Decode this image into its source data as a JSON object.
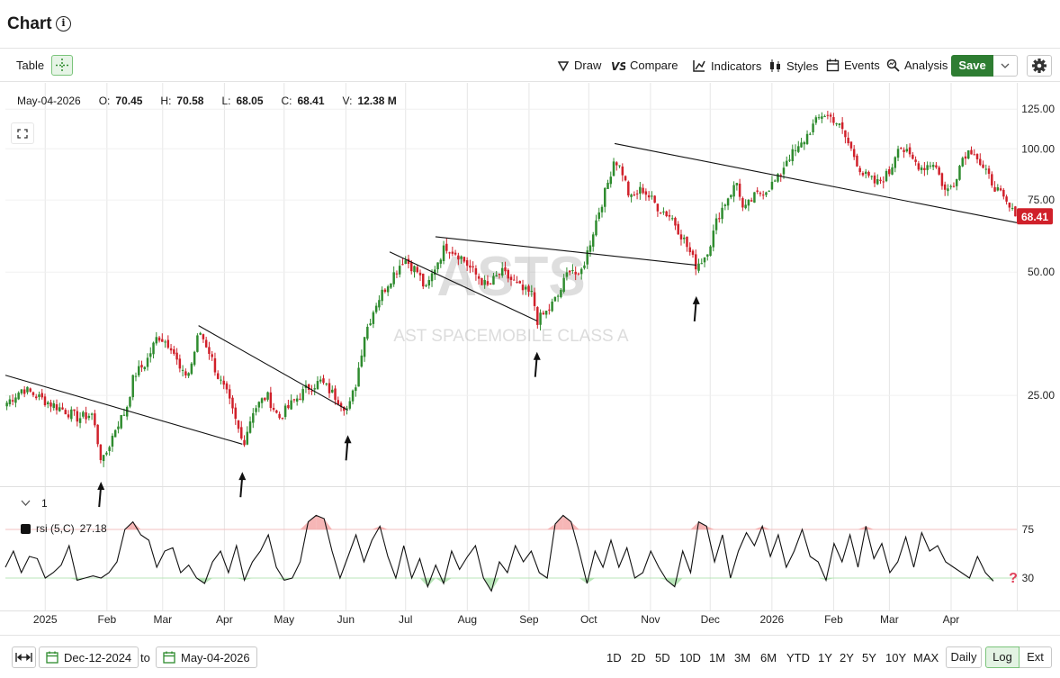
{
  "header": {
    "title": "Chart",
    "info_icon": "info-icon"
  },
  "toolbar": {
    "table_label": "Table",
    "draw_label": "Draw",
    "compare_label": "Compare",
    "indicators_label": "Indicators",
    "styles_label": "Styles",
    "events_label": "Events",
    "analysis_label": "Analysis",
    "save_label": "Save"
  },
  "ohlc": {
    "date": "May-04-2026",
    "o_label": "O:",
    "o": "70.45",
    "h_label": "H:",
    "h": "70.58",
    "l_label": "L:",
    "l": "68.05",
    "c_label": "C:",
    "c": "68.41",
    "v_label": "V:",
    "v": "12.38 M"
  },
  "panel": {
    "collapse_count": "1",
    "rsi_label": "rsi (5,C)",
    "rsi_value": "27.18"
  },
  "bottom": {
    "start_date": "Dec-12-2024",
    "to_label": "to",
    "end_date": "May-04-2026",
    "periods": [
      "1D",
      "2D",
      "5D",
      "10D",
      "1M",
      "3M",
      "6M",
      "YTD",
      "1Y",
      "2Y",
      "5Y",
      "10Y",
      "MAX"
    ],
    "daily_label": "Daily",
    "log_label": "Log",
    "ext_label": "Ext"
  },
  "colors": {
    "up": "#2e8b2e",
    "down": "#d0202a",
    "accent": "#2e7d32",
    "overbought": "#f4a4a4",
    "oversold": "#a8e0a8"
  },
  "chart_data": [
    {
      "type": "candlestick",
      "title": "",
      "watermark_symbol": "ASTS",
      "watermark_name": "AST SPACEMOBILE CLASS A",
      "scale": "log",
      "ylim": [
        15,
        135
      ],
      "y_ticks": [
        "125.00",
        "100.00",
        "75.00",
        "50.00",
        "25.00"
      ],
      "x_ticks": [
        "2025",
        "Feb",
        "Mar",
        "Apr",
        "May",
        "Jun",
        "Jul",
        "Aug",
        "Sep",
        "Oct",
        "Nov",
        "Dec",
        "2026",
        "Feb",
        "Mar",
        "Apr"
      ],
      "last_price": "68.41",
      "close_path": [
        [
          "2024-12-12",
          24
        ],
        [
          "2024-12-20",
          26
        ],
        [
          "2025-01-02",
          24
        ],
        [
          "2025-01-10",
          23
        ],
        [
          "2025-01-17",
          22
        ],
        [
          "2025-01-24",
          22.5
        ],
        [
          "2025-01-29",
          17
        ],
        [
          "2025-02-05",
          21
        ],
        [
          "2025-02-10",
          23
        ],
        [
          "2025-02-14",
          28
        ],
        [
          "2025-02-20",
          30
        ],
        [
          "2025-02-26",
          35
        ],
        [
          "2025-03-05",
          33
        ],
        [
          "2025-03-10",
          28
        ],
        [
          "2025-03-14",
          28.5
        ],
        [
          "2025-03-19",
          36
        ],
        [
          "2025-03-24",
          32
        ],
        [
          "2025-03-28",
          28
        ],
        [
          "2025-04-02",
          25
        ],
        [
          "2025-04-07",
          21
        ],
        [
          "2025-04-10",
          19
        ],
        [
          "2025-04-15",
          23
        ],
        [
          "2025-04-22",
          25
        ],
        [
          "2025-04-28",
          22
        ],
        [
          "2025-05-05",
          24
        ],
        [
          "2025-05-12",
          26
        ],
        [
          "2025-05-19",
          27
        ],
        [
          "2025-05-26",
          25
        ],
        [
          "2025-06-02",
          23
        ],
        [
          "2025-06-06",
          27
        ],
        [
          "2025-06-10",
          35
        ],
        [
          "2025-06-16",
          42
        ],
        [
          "2025-06-23",
          48
        ],
        [
          "2025-06-30",
          54
        ],
        [
          "2025-07-07",
          50
        ],
        [
          "2025-07-11",
          45
        ],
        [
          "2025-07-16",
          52
        ],
        [
          "2025-07-21",
          58
        ],
        [
          "2025-07-28",
          55
        ],
        [
          "2025-08-04",
          50
        ],
        [
          "2025-08-11",
          46
        ],
        [
          "2025-08-18",
          50
        ],
        [
          "2025-08-25",
          47
        ],
        [
          "2025-08-29",
          45
        ],
        [
          "2025-09-03",
          44
        ],
        [
          "2025-09-05",
          38
        ],
        [
          "2025-09-10",
          40
        ],
        [
          "2025-09-16",
          44
        ],
        [
          "2025-09-22",
          52
        ],
        [
          "2025-09-26",
          48
        ],
        [
          "2025-09-30",
          55
        ],
        [
          "2025-10-06",
          70
        ],
        [
          "2025-10-10",
          80
        ],
        [
          "2025-10-14",
          95
        ],
        [
          "2025-10-18",
          88
        ],
        [
          "2025-10-22",
          75
        ],
        [
          "2025-10-28",
          80
        ],
        [
          "2025-11-05",
          72
        ],
        [
          "2025-11-12",
          68
        ],
        [
          "2025-11-18",
          60
        ],
        [
          "2025-11-24",
          52
        ],
        [
          "2025-11-28",
          54
        ],
        [
          "2025-12-02",
          60
        ],
        [
          "2025-12-05",
          68
        ],
        [
          "2025-12-10",
          76
        ],
        [
          "2025-12-15",
          83
        ],
        [
          "2025-12-18",
          70
        ],
        [
          "2025-12-23",
          76
        ],
        [
          "2025-12-30",
          80
        ],
        [
          "2026-01-05",
          85
        ],
        [
          "2026-01-09",
          95
        ],
        [
          "2026-01-15",
          100
        ],
        [
          "2026-01-21",
          112
        ],
        [
          "2026-01-27",
          122
        ],
        [
          "2026-02-02",
          118
        ],
        [
          "2026-02-06",
          110
        ],
        [
          "2026-02-11",
          98
        ],
        [
          "2026-02-16",
          87
        ],
        [
          "2026-02-23",
          82
        ],
        [
          "2026-03-02",
          88
        ],
        [
          "2026-03-06",
          103
        ],
        [
          "2026-03-12",
          95
        ],
        [
          "2026-03-18",
          90
        ],
        [
          "2026-03-24",
          93
        ],
        [
          "2026-03-30",
          78
        ],
        [
          "2026-04-03",
          83
        ],
        [
          "2026-04-08",
          97
        ],
        [
          "2026-04-13",
          100
        ],
        [
          "2026-04-17",
          90
        ],
        [
          "2026-04-23",
          82
        ],
        [
          "2026-04-28",
          75
        ],
        [
          "2026-05-04",
          68.41
        ]
      ],
      "trendlines": [
        [
          [
            "2024-12-12",
            28
          ],
          [
            "2025-04-10",
            19
          ]
        ],
        [
          [
            "2025-03-19",
            37
          ],
          [
            "2025-06-02",
            23
          ]
        ],
        [
          [
            "2025-06-23",
            56
          ],
          [
            "2025-09-05",
            38
          ]
        ],
        [
          [
            "2025-07-16",
            61
          ],
          [
            "2025-11-24",
            52
          ]
        ],
        [
          [
            "2025-10-14",
            103
          ],
          [
            "2026-05-04",
            66
          ]
        ]
      ],
      "arrows_up": [
        "2025-01-29",
        "2025-04-10",
        "2025-06-02",
        "2025-09-05",
        "2025-11-24"
      ]
    },
    {
      "type": "line",
      "title": "",
      "series": [
        {
          "name": "rsi (5,C)",
          "last_value": 27.18
        }
      ],
      "ylim": [
        0,
        100
      ],
      "y_ticks": [
        "75",
        "30"
      ],
      "overbought": 75,
      "oversold": 30,
      "values": [
        40,
        55,
        35,
        50,
        48,
        30,
        35,
        42,
        60,
        28,
        30,
        32,
        30,
        35,
        45,
        75,
        82,
        70,
        65,
        40,
        55,
        58,
        35,
        42,
        30,
        25,
        45,
        55,
        35,
        60,
        28,
        45,
        55,
        70,
        40,
        28,
        30,
        45,
        82,
        88,
        85,
        55,
        30,
        50,
        70,
        45,
        65,
        78,
        50,
        30,
        60,
        30,
        48,
        22,
        42,
        25,
        55,
        38,
        50,
        60,
        30,
        18,
        45,
        35,
        60,
        45,
        55,
        35,
        30,
        80,
        88,
        82,
        55,
        25,
        55,
        40,
        65,
        40,
        58,
        30,
        35,
        55,
        40,
        28,
        22,
        55,
        35,
        82,
        78,
        45,
        70,
        30,
        55,
        72,
        60,
        78,
        50,
        70,
        40,
        55,
        75,
        50,
        45,
        28,
        62,
        45,
        70,
        40,
        78,
        48,
        62,
        35,
        45,
        68,
        40,
        72,
        55,
        60,
        45,
        40,
        35,
        30,
        50,
        35,
        27.18
      ]
    }
  ]
}
